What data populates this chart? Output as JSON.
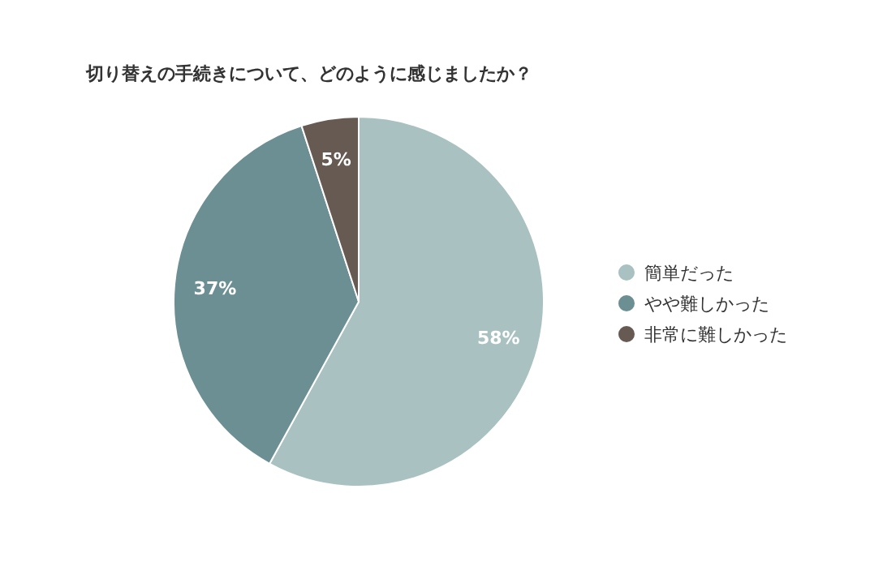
{
  "chart_data": {
    "type": "pie",
    "title": "切り替えの手続きについて、どのように感じましたか？",
    "categories": [
      "簡単だった",
      "やや難しかった",
      "非常に難しかった"
    ],
    "values": [
      58,
      37,
      5
    ],
    "colors": [
      "#a9c1c1",
      "#6b8f92",
      "#665a52"
    ],
    "value_labels": [
      "58%",
      "37%",
      "5%"
    ],
    "legend": "right"
  }
}
